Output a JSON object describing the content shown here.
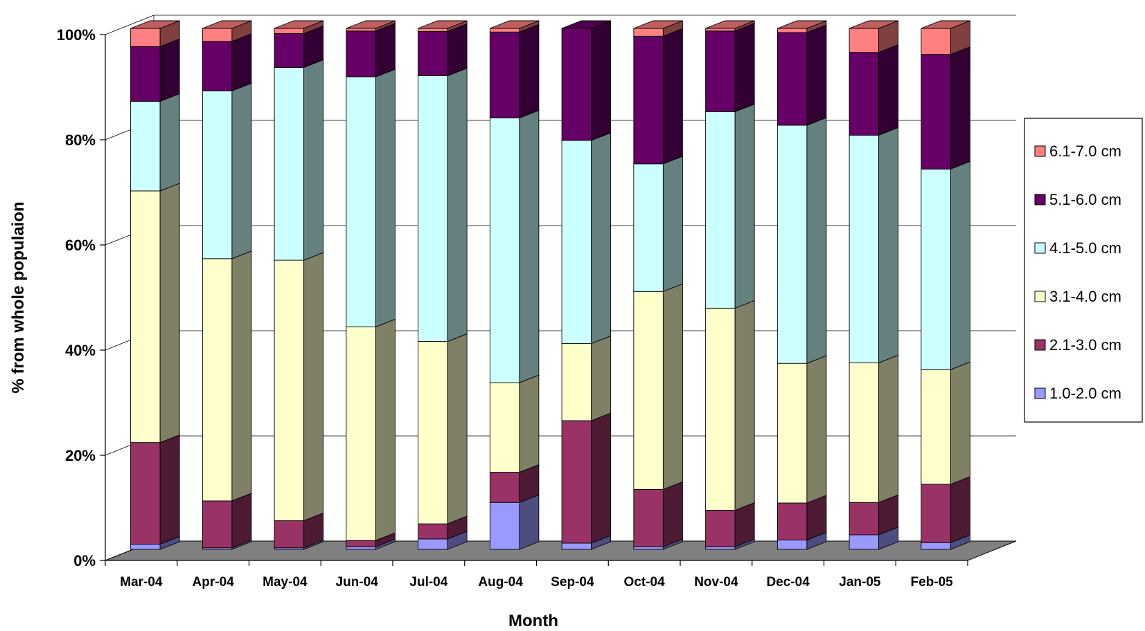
{
  "chart_data": {
    "type": "bar",
    "stacked": true,
    "percent_stacked": true,
    "three_d": true,
    "xlabel": "Month",
    "ylabel": "% from whole populaion",
    "ylim": [
      0,
      100
    ],
    "yticks": [
      "0%",
      "20%",
      "40%",
      "60%",
      "80%",
      "100%"
    ],
    "grid": true,
    "legend_position": "right",
    "categories": [
      "Mar-04",
      "Apr-04",
      "May-04",
      "Jun-04",
      "Jul-04",
      "Aug-04",
      "Sep-04",
      "Oct-04",
      "Nov-04",
      "Dec-04",
      "Jan-05",
      "Feb-05"
    ],
    "series": [
      {
        "name": "1.0-2.0 cm",
        "color": "#9999FF",
        "values": [
          1.0,
          0.3,
          0.3,
          0.5,
          2.0,
          9.0,
          1.2,
          0.5,
          0.5,
          1.8,
          2.8,
          1.3
        ]
      },
      {
        "name": "2.1-3.0 cm",
        "color": "#993366",
        "values": [
          19.5,
          9.0,
          5.2,
          1.2,
          2.9,
          5.8,
          23.5,
          11.0,
          7.0,
          7.1,
          6.2,
          11.2
        ]
      },
      {
        "name": "3.1-4.0 cm",
        "color": "#FFFFCC",
        "values": [
          48.3,
          46.5,
          50.0,
          41.0,
          35.0,
          17.2,
          14.8,
          38.0,
          38.8,
          26.8,
          26.8,
          22.0
        ]
      },
      {
        "name": "4.1-5.0 cm",
        "color": "#CCFFFF",
        "values": [
          17.2,
          32.2,
          37.0,
          48.0,
          51.0,
          50.8,
          39.0,
          24.5,
          37.7,
          45.7,
          43.7,
          38.5
        ]
      },
      {
        "name": "5.1-6.0 cm",
        "color": "#660066",
        "values": [
          10.5,
          9.5,
          6.5,
          8.8,
          8.5,
          16.5,
          21.5,
          24.5,
          15.5,
          17.8,
          15.9,
          22.0
        ]
      },
      {
        "name": "6.1-7.0 cm",
        "color": "#FF8080",
        "values": [
          3.5,
          2.5,
          1.0,
          0.5,
          0.6,
          0.7,
          0.0,
          1.5,
          0.5,
          0.8,
          4.6,
          5.0
        ]
      }
    ]
  }
}
